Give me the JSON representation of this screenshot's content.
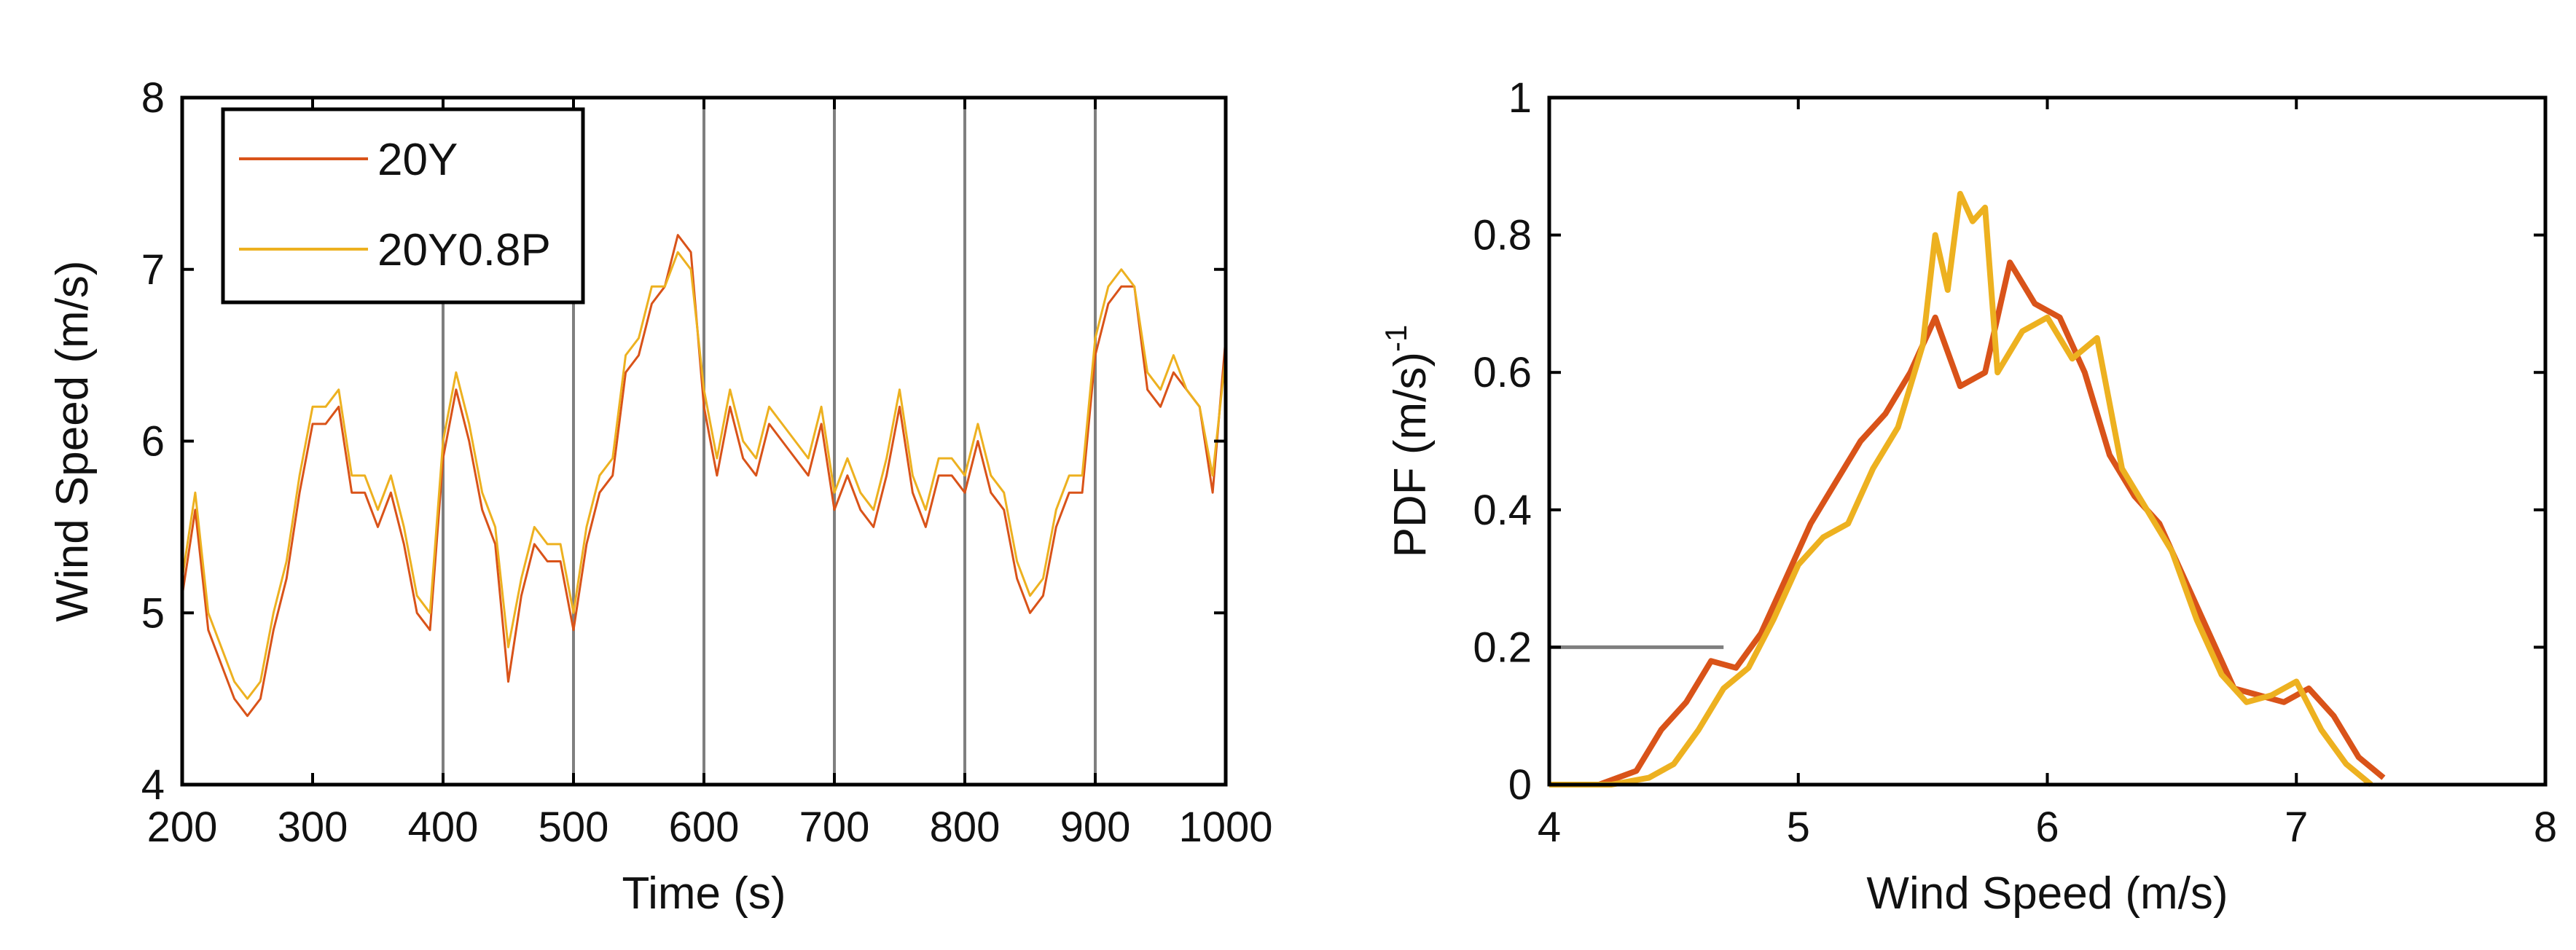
{
  "colors": {
    "series_1": "#d95319",
    "series_2": "#edb120",
    "axes": "#000000",
    "gridline": "#7f7f7f",
    "background": "#ffffff"
  },
  "chart_data": [
    {
      "type": "line",
      "title": "",
      "xlabel": "Time (s)",
      "ylabel": "Wind Speed (m/s)",
      "xlim": [
        200,
        1000
      ],
      "ylim": [
        4,
        8
      ],
      "xticks": [
        200,
        300,
        400,
        500,
        600,
        700,
        800,
        900,
        1000
      ],
      "yticks": [
        4,
        5,
        6,
        7,
        8
      ],
      "xtick_labels": [
        "200",
        "300",
        "400",
        "500",
        "600",
        "700",
        "800",
        "900",
        "1000"
      ],
      "ytick_labels": [
        "4",
        "5",
        "6",
        "7",
        "8"
      ],
      "vertical_lines_x": [
        400,
        500,
        600,
        700,
        800,
        900
      ],
      "legend": {
        "position": "top-left",
        "entries": [
          "20Y",
          "20Y0.8P"
        ]
      },
      "grid": false,
      "series": [
        {
          "name": "20Y",
          "x": [
            200,
            210,
            220,
            230,
            240,
            250,
            260,
            270,
            280,
            290,
            300,
            310,
            320,
            330,
            340,
            350,
            360,
            370,
            380,
            390,
            400,
            410,
            420,
            430,
            440,
            450,
            460,
            470,
            480,
            490,
            500,
            510,
            520,
            530,
            540,
            550,
            560,
            570,
            580,
            590,
            600,
            610,
            620,
            630,
            640,
            650,
            660,
            670,
            680,
            690,
            700,
            710,
            720,
            730,
            740,
            750,
            760,
            770,
            780,
            790,
            800,
            810,
            820,
            830,
            840,
            850,
            860,
            870,
            880,
            890,
            900,
            910,
            920,
            930,
            940,
            950,
            960,
            970,
            980,
            990,
            1000
          ],
          "y": [
            5.1,
            5.6,
            4.9,
            4.7,
            4.5,
            4.4,
            4.5,
            4.9,
            5.2,
            5.7,
            6.1,
            6.1,
            6.2,
            5.7,
            5.7,
            5.5,
            5.7,
            5.4,
            5.0,
            4.9,
            5.9,
            6.3,
            6.0,
            5.6,
            5.4,
            4.6,
            5.1,
            5.4,
            5.3,
            5.3,
            4.9,
            5.4,
            5.7,
            5.8,
            6.4,
            6.5,
            6.8,
            6.9,
            7.2,
            7.1,
            6.2,
            5.8,
            6.2,
            5.9,
            5.8,
            6.1,
            6.0,
            5.9,
            5.8,
            6.1,
            5.6,
            5.8,
            5.6,
            5.5,
            5.8,
            6.2,
            5.7,
            5.5,
            5.8,
            5.8,
            5.7,
            6.0,
            5.7,
            5.6,
            5.2,
            5.0,
            5.1,
            5.5,
            5.7,
            5.7,
            6.5,
            6.8,
            6.9,
            6.9,
            6.3,
            6.2,
            6.4,
            6.3,
            6.2,
            5.7,
            6.6
          ]
        },
        {
          "name": "20Y0.8P",
          "x": [
            200,
            210,
            220,
            230,
            240,
            250,
            260,
            270,
            280,
            290,
            300,
            310,
            320,
            330,
            340,
            350,
            360,
            370,
            380,
            390,
            400,
            410,
            420,
            430,
            440,
            450,
            460,
            470,
            480,
            490,
            500,
            510,
            520,
            530,
            540,
            550,
            560,
            570,
            580,
            590,
            600,
            610,
            620,
            630,
            640,
            650,
            660,
            670,
            680,
            690,
            700,
            710,
            720,
            730,
            740,
            750,
            760,
            770,
            780,
            790,
            800,
            810,
            820,
            830,
            840,
            850,
            860,
            870,
            880,
            890,
            900,
            910,
            920,
            930,
            940,
            950,
            960,
            970,
            980,
            990,
            1000
          ],
          "y": [
            5.2,
            5.7,
            5.0,
            4.8,
            4.6,
            4.5,
            4.6,
            5.0,
            5.3,
            5.8,
            6.2,
            6.2,
            6.3,
            5.8,
            5.8,
            5.6,
            5.8,
            5.5,
            5.1,
            5.0,
            6.0,
            6.4,
            6.1,
            5.7,
            5.5,
            4.8,
            5.2,
            5.5,
            5.4,
            5.4,
            5.0,
            5.5,
            5.8,
            5.9,
            6.5,
            6.6,
            6.9,
            6.9,
            7.1,
            7.0,
            6.3,
            5.9,
            6.3,
            6.0,
            5.9,
            6.2,
            6.1,
            6.0,
            5.9,
            6.2,
            5.7,
            5.9,
            5.7,
            5.6,
            5.9,
            6.3,
            5.8,
            5.6,
            5.9,
            5.9,
            5.8,
            6.1,
            5.8,
            5.7,
            5.3,
            5.1,
            5.2,
            5.6,
            5.8,
            5.8,
            6.6,
            6.9,
            7.0,
            6.9,
            6.4,
            6.3,
            6.5,
            6.3,
            6.2,
            5.8,
            6.5
          ]
        }
      ]
    },
    {
      "type": "line",
      "title": "",
      "xlabel": "Wind Speed (m/s)",
      "ylabel": "PDF (m/s)",
      "ylabel_superscript": "-1",
      "xlim": [
        4,
        8
      ],
      "ylim": [
        0,
        1
      ],
      "xticks": [
        4,
        5,
        6,
        7,
        8
      ],
      "yticks": [
        0,
        0.2,
        0.4,
        0.6,
        0.8,
        1
      ],
      "xtick_labels": [
        "4",
        "5",
        "6",
        "7",
        "8"
      ],
      "ytick_labels": [
        "0",
        "0.2",
        "0.4",
        "0.6",
        "0.8",
        "1"
      ],
      "reference_line": {
        "y": 0.2,
        "x_from": 4,
        "x_to": 4.7
      },
      "legend": null,
      "grid": false,
      "series": [
        {
          "name": "20Y",
          "x": [
            4.0,
            4.2,
            4.35,
            4.45,
            4.55,
            4.65,
            4.75,
            4.85,
            4.95,
            5.05,
            5.15,
            5.25,
            5.35,
            5.45,
            5.55,
            5.65,
            5.75,
            5.85,
            5.95,
            6.05,
            6.15,
            6.25,
            6.35,
            6.45,
            6.55,
            6.65,
            6.75,
            6.85,
            6.95,
            7.05,
            7.15,
            7.25,
            7.35
          ],
          "y": [
            0.0,
            0.0,
            0.02,
            0.08,
            0.12,
            0.18,
            0.17,
            0.22,
            0.3,
            0.38,
            0.44,
            0.5,
            0.54,
            0.6,
            0.68,
            0.58,
            0.6,
            0.76,
            0.7,
            0.68,
            0.6,
            0.48,
            0.42,
            0.38,
            0.3,
            0.22,
            0.14,
            0.13,
            0.12,
            0.14,
            0.1,
            0.04,
            0.01
          ]
        },
        {
          "name": "20Y0.8P",
          "x": [
            4.0,
            4.25,
            4.4,
            4.5,
            4.6,
            4.7,
            4.8,
            4.9,
            5.0,
            5.1,
            5.2,
            5.3,
            5.4,
            5.5,
            5.55,
            5.6,
            5.65,
            5.7,
            5.75,
            5.8,
            5.9,
            6.0,
            6.1,
            6.2,
            6.3,
            6.4,
            6.5,
            6.6,
            6.7,
            6.8,
            6.9,
            7.0,
            7.1,
            7.2,
            7.3
          ],
          "y": [
            0.0,
            0.0,
            0.01,
            0.03,
            0.08,
            0.14,
            0.17,
            0.24,
            0.32,
            0.36,
            0.38,
            0.46,
            0.52,
            0.64,
            0.8,
            0.72,
            0.86,
            0.82,
            0.84,
            0.6,
            0.66,
            0.68,
            0.62,
            0.65,
            0.46,
            0.4,
            0.34,
            0.24,
            0.16,
            0.12,
            0.13,
            0.15,
            0.08,
            0.03,
            0.0
          ]
        }
      ]
    }
  ]
}
